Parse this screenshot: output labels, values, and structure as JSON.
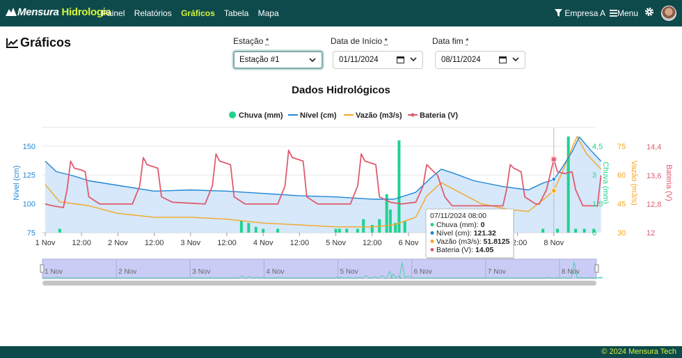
{
  "navbar": {
    "brand_part1": "Mensura",
    "brand_part2": "Hidrologia",
    "links": [
      {
        "label": "Painel"
      },
      {
        "label": "Relatórios"
      },
      {
        "label": "Gráficos",
        "active": true
      },
      {
        "label": "Tabela"
      },
      {
        "label": "Mapa"
      }
    ],
    "company": "Empresa A",
    "menu_label": "Menu",
    "icons": {
      "filter": "filter-icon",
      "menu": "hamburger-icon",
      "settings": "gear-icon",
      "avatar": "avatar"
    }
  },
  "page": {
    "title": "Gráficos"
  },
  "filters": {
    "station": {
      "label": "Estação",
      "required": "*",
      "value": "Estação #1"
    },
    "start": {
      "label": "Data de Início",
      "required": "*",
      "value": "01/11/2024"
    },
    "end": {
      "label": "Data fim",
      "required": "*",
      "value": "08/11/2024"
    }
  },
  "colors": {
    "chuva": "#1fd38f",
    "nivel": "#1f86d6",
    "vazao": "#f5a623",
    "bateria": "#e05a6e",
    "brand": "#0e4a4c",
    "accent": "#d4f53c"
  },
  "chart_data": {
    "type": "line",
    "title": "Dados Hidrológicos",
    "legend": [
      {
        "name": "Chuva (mm)",
        "marker": "dot",
        "color": "#1fd38f"
      },
      {
        "name": "Nível (cm)",
        "marker": "line",
        "color": "#1f86d6"
      },
      {
        "name": "Vazão (m3/s)",
        "marker": "line",
        "color": "#f5a623"
      },
      {
        "name": "Bateria (V)",
        "marker": "line-dot",
        "color": "#e05a6e"
      }
    ],
    "legend_position": "top",
    "x_range_days": [
      0,
      7.5
    ],
    "x_ticks": [
      "1 Nov",
      "12:00",
      "2 Nov",
      "12:00",
      "3 Nov",
      "12:00",
      "4 Nov",
      "12:00",
      "5 Nov",
      "12:00",
      "6 Nov",
      "12:00",
      "7 Nov",
      "12:00",
      "8 Nov"
    ],
    "axes": {
      "nivel": {
        "label": "Nível (cm)",
        "ticks": [
          "75",
          "100",
          "125",
          "150"
        ],
        "range": [
          75,
          165
        ]
      },
      "chuva": {
        "label": "Chuva (mm)",
        "ticks": [
          "0",
          "1,5",
          "3",
          "4,5"
        ],
        "range": [
          0,
          5.4
        ]
      },
      "vazao": {
        "label": "Vazão (m3/s)",
        "ticks": [
          "30",
          "45",
          "60",
          "75"
        ],
        "range": [
          30,
          84
        ]
      },
      "bateria": {
        "label": "Bateria (V)",
        "ticks": [
          "12",
          "12,8",
          "13,6",
          "14,4"
        ],
        "range": [
          12,
          14.9
        ]
      }
    },
    "series": {
      "nivel": [
        [
          0,
          137
        ],
        [
          0.15,
          128
        ],
        [
          0.4,
          124
        ],
        [
          0.6,
          120
        ],
        [
          1,
          116
        ],
        [
          1.5,
          111
        ],
        [
          2,
          112
        ],
        [
          2.5,
          111
        ],
        [
          3,
          109
        ],
        [
          3.5,
          107
        ],
        [
          4,
          106
        ],
        [
          4.5,
          104
        ],
        [
          4.8,
          104
        ],
        [
          5.1,
          110
        ],
        [
          5.3,
          122
        ],
        [
          5.45,
          130
        ],
        [
          5.6,
          127
        ],
        [
          5.9,
          120
        ],
        [
          6.3,
          115
        ],
        [
          6.65,
          112
        ],
        [
          6.85,
          118
        ],
        [
          7,
          121
        ],
        [
          7.1,
          130
        ],
        [
          7.25,
          145
        ],
        [
          7.35,
          158
        ],
        [
          7.5,
          147
        ],
        [
          7.65,
          137
        ]
      ],
      "vazao": [
        [
          0,
          55
        ],
        [
          0.2,
          46
        ],
        [
          0.6,
          44
        ],
        [
          1,
          40
        ],
        [
          1.5,
          38
        ],
        [
          2,
          38
        ],
        [
          2.5,
          37
        ],
        [
          3,
          35
        ],
        [
          3.5,
          34
        ],
        [
          4,
          33
        ],
        [
          4.5,
          33
        ],
        [
          4.8,
          34
        ],
        [
          5.1,
          38
        ],
        [
          5.25,
          49
        ],
        [
          5.45,
          56
        ],
        [
          5.6,
          53
        ],
        [
          6,
          45
        ],
        [
          6.4,
          42
        ],
        [
          6.65,
          41
        ],
        [
          6.85,
          47
        ],
        [
          7,
          51.8
        ],
        [
          7.1,
          60
        ],
        [
          7.25,
          74
        ],
        [
          7.32,
          80
        ],
        [
          7.45,
          71
        ],
        [
          7.65,
          63
        ]
      ],
      "bateria": [
        [
          0,
          12.8
        ],
        [
          0.1,
          12.75
        ],
        [
          0.25,
          12.7
        ],
        [
          0.3,
          13.2
        ],
        [
          0.35,
          14.0
        ],
        [
          0.4,
          13.8
        ],
        [
          0.5,
          13.75
        ],
        [
          0.55,
          13.7
        ],
        [
          0.6,
          13.0
        ],
        [
          0.75,
          12.8
        ],
        [
          1.2,
          12.8
        ],
        [
          1.3,
          13.3
        ],
        [
          1.35,
          14.1
        ],
        [
          1.4,
          13.9
        ],
        [
          1.55,
          13.8
        ],
        [
          1.6,
          13.0
        ],
        [
          1.75,
          12.85
        ],
        [
          2.2,
          12.8
        ],
        [
          2.3,
          13.3
        ],
        [
          2.35,
          14.2
        ],
        [
          2.4,
          14.0
        ],
        [
          2.55,
          13.9
        ],
        [
          2.6,
          13.0
        ],
        [
          2.75,
          12.8
        ],
        [
          3.2,
          12.8
        ],
        [
          3.3,
          13.3
        ],
        [
          3.35,
          14.3
        ],
        [
          3.4,
          14.1
        ],
        [
          3.55,
          14.0
        ],
        [
          3.6,
          13.0
        ],
        [
          3.75,
          12.8
        ],
        [
          4.2,
          12.8
        ],
        [
          4.3,
          13.3
        ],
        [
          4.35,
          14.2
        ],
        [
          4.4,
          14.0
        ],
        [
          4.55,
          13.9
        ],
        [
          4.6,
          13.0
        ],
        [
          4.75,
          12.85
        ],
        [
          4.9,
          12.8
        ],
        [
          5.1,
          12.85
        ],
        [
          5.2,
          13.3
        ],
        [
          5.25,
          13.9
        ],
        [
          5.3,
          13.8
        ],
        [
          5.4,
          13.6
        ],
        [
          5.5,
          13.0
        ],
        [
          5.6,
          12.75
        ],
        [
          6.3,
          12.75
        ],
        [
          6.35,
          13.2
        ],
        [
          6.4,
          13.9
        ],
        [
          6.45,
          13.8
        ],
        [
          6.55,
          13.7
        ],
        [
          6.6,
          13.0
        ],
        [
          6.75,
          12.8
        ],
        [
          6.8,
          12.8
        ],
        [
          6.9,
          13.2
        ],
        [
          7,
          14.05
        ],
        [
          7.05,
          13.7
        ],
        [
          7.15,
          13.65
        ],
        [
          7.25,
          13.7
        ],
        [
          7.3,
          13.2
        ],
        [
          7.4,
          12.75
        ],
        [
          7.6,
          12.75
        ],
        [
          7.65,
          13.6
        ]
      ],
      "chuva": [
        [
          0.2,
          0.2
        ],
        [
          2.7,
          0.6
        ],
        [
          2.8,
          0.5
        ],
        [
          2.9,
          0.3
        ],
        [
          3.0,
          0.2
        ],
        [
          3.2,
          0.2
        ],
        [
          4.0,
          0.2
        ],
        [
          4.05,
          0.2
        ],
        [
          4.15,
          0.2
        ],
        [
          4.3,
          0.2
        ],
        [
          4.38,
          0.7
        ],
        [
          4.5,
          0.4
        ],
        [
          4.6,
          0.7
        ],
        [
          4.7,
          2.0
        ],
        [
          4.75,
          1.2
        ],
        [
          4.82,
          0.5
        ],
        [
          4.87,
          4.8
        ],
        [
          4.95,
          0.6
        ],
        [
          6.85,
          0.2
        ],
        [
          7.05,
          0.2
        ],
        [
          7.2,
          5.0
        ],
        [
          7.3,
          0.2
        ],
        [
          7.42,
          0.2
        ],
        [
          7.55,
          0.2
        ]
      ]
    },
    "navigator_ticks": [
      "1 Nov",
      "2 Nov",
      "3 Nov",
      "4 Nov",
      "5 Nov",
      "6 Nov",
      "7 Nov",
      "8 Nov"
    ],
    "tooltip": {
      "title": "07/11/2024 08:00",
      "rows": [
        {
          "label": "Chuva (mm):",
          "value": "0"
        },
        {
          "label": "Nível (cm):",
          "value": "121.32"
        },
        {
          "label": "Vazão (m3/s):",
          "value": "51.8125"
        },
        {
          "label": "Bateria (V):",
          "value": "14.05"
        }
      ],
      "x": 7.0
    }
  },
  "footer": {
    "text": "© 2024 Mensura Tech"
  }
}
